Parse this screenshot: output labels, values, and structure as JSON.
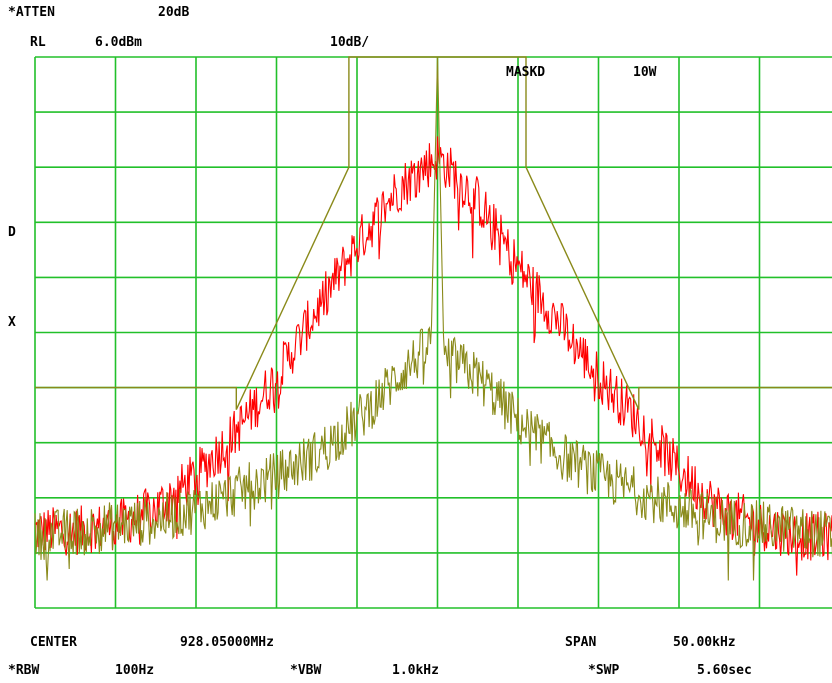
{
  "header": {
    "atten_label": "*ATTEN",
    "atten_value": "20dB",
    "rl_label": "RL",
    "rl_value": "6.0dBm",
    "scale": "10dB/",
    "mask_label": "MASKD",
    "mask_value": "10W"
  },
  "side": {
    "d_marker": "D",
    "x_marker": "X"
  },
  "footer": {
    "center_label": "CENTER",
    "center_value": "928.05000MHz",
    "span_label": "SPAN",
    "span_value": "50.00kHz",
    "rbw_label": "*RBW",
    "rbw_value": "100Hz",
    "vbw_label": "*VBW",
    "vbw_value": "1.0kHz",
    "swp_label": "*SWP",
    "swp_value": "5.60sec"
  },
  "colors": {
    "grid": "#22c02a",
    "trace_a": "#ff0000",
    "trace_b": "#8a8a1a",
    "mask": "#8a8a1a"
  },
  "chart_data": {
    "type": "line",
    "x_unit": "kHz offset from center",
    "y_unit": "dBm",
    "xlim": [
      -25,
      25
    ],
    "ylim": [
      -94,
      6
    ],
    "x_divisions": 10,
    "y_divisions": 10,
    "grid": true,
    "mask": {
      "x": [
        -25,
        -12.5,
        -12.5,
        -5.5,
        -5.5,
        -5,
        -5,
        -2.5,
        -2.5,
        2.5,
        2.5,
        5,
        5,
        5.5,
        5.5,
        12.5,
        12.5,
        25
      ],
      "y": [
        -54,
        -54,
        -58,
        -14,
        6,
        6,
        6,
        6,
        6,
        6,
        6,
        6,
        6,
        6,
        -14,
        -58,
        -54,
        -54
      ]
    },
    "series": [
      {
        "color": "red",
        "x": [
          -25,
          -22.5,
          -20,
          -17.5,
          -15,
          -12.5,
          -10,
          -7.5,
          -5,
          -2.5,
          0,
          2.5,
          5,
          7.5,
          10,
          12.5,
          15,
          17.5,
          20,
          22.5,
          25
        ],
        "y": [
          -80,
          -80,
          -79,
          -76,
          -70,
          -62,
          -52,
          -40,
          -28,
          -18,
          -12,
          -20,
          -32,
          -42,
          -52,
          -60,
          -69,
          -76,
          -79,
          -81,
          -81
        ]
      },
      {
        "color": "olive",
        "x": [
          -25,
          -22.5,
          -20,
          -17.5,
          -15,
          -12.5,
          -10,
          -7.5,
          -5,
          -2.5,
          -0.4,
          0,
          0.4,
          2.5,
          5,
          7.5,
          10,
          12.5,
          15,
          17.5,
          20,
          22.5,
          25
        ],
        "y": [
          -81,
          -80,
          -79,
          -78,
          -76,
          -73,
          -70,
          -66,
          -60,
          -52,
          -46,
          6,
          -48,
          -52,
          -60,
          -66,
          -70,
          -73,
          -76,
          -78,
          -79,
          -80,
          -81
        ]
      }
    ]
  }
}
